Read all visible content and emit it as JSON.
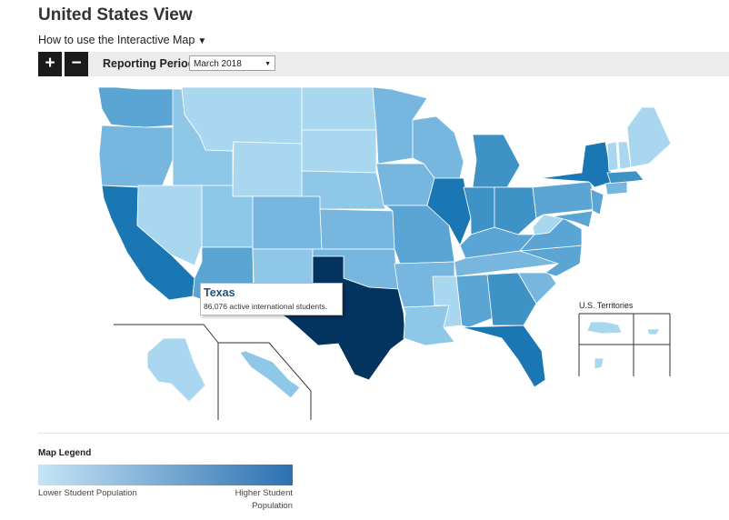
{
  "page_title": "United States View",
  "howto": {
    "label": "How to use the Interactive Map",
    "caret": "▼"
  },
  "toolbar": {
    "zoom_in": "+",
    "zoom_out": "−",
    "period_label": "Reporting Period:",
    "period_value": "March 2018",
    "period_caret": "▼"
  },
  "tooltip": {
    "state": "Texas",
    "text": "86,076 active international students."
  },
  "territories_title": "U.S. Territories",
  "legend": {
    "title": "Map Legend",
    "low_label": "Lower Student Population",
    "high_label": "Higher Student Population",
    "low_color": "#c6e4f6",
    "high_color": "#2c71b1"
  },
  "colors": {
    "c1": "#a9d7f0",
    "c2": "#8ec7e7",
    "c3": "#76b6df",
    "c4": "#5aa5d3",
    "c5": "#3e92c6",
    "c6": "#1a77b3",
    "highlight": "#03335f",
    "border": "#ffffff"
  }
}
